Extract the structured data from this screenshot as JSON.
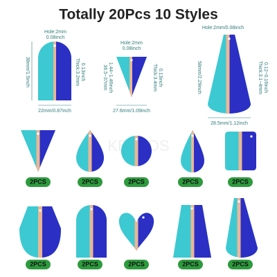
{
  "title": "Totally 20Pcs 10 Styles",
  "watermark": "KBEADS",
  "dimensions": [
    {
      "hole": "Hole:2mm",
      "hole_inch": "0.08inch",
      "height": "38mm/1.5inch",
      "thick": "Thick:3.2mm",
      "thick_inch": "0.13inch",
      "width": "22mm/0.87inch"
    },
    {
      "hole": "Hole:2mm",
      "hole_inch": "0.08inch",
      "height": "36.5~37mm",
      "height_inch": "1.44~1.46inch",
      "thick": "Thick:3.4mm",
      "thick_inch": "0.13inch",
      "width": "27.6mm/1.09inch"
    },
    {
      "hole": "Hole:2mm/0.08inch",
      "height": "58mm/2.29inch",
      "thick": "Thick:3.1~4mm",
      "thick_inch": "0.12~0.16inch",
      "width": "28.5mm/1.12inch"
    }
  ],
  "badges": [
    "2PCS",
    "2PCS",
    "2PCS",
    "2PCS",
    "2PCS",
    "2PCS",
    "2PCS",
    "2PCS",
    "2PCS",
    "2PCS"
  ]
}
